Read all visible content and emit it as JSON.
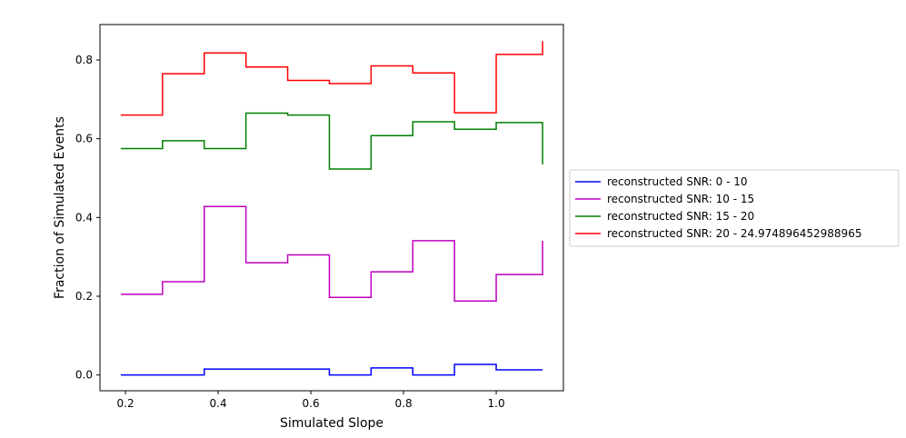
{
  "chart_data": {
    "type": "line",
    "step": true,
    "xlabel": "Simulated Slope",
    "ylabel": "Fraction of Simulated Events",
    "xlim": [
      0.145,
      1.145
    ],
    "ylim": [
      -0.04,
      0.89
    ],
    "xticks": [
      0.2,
      0.4,
      0.6,
      0.8,
      1.0
    ],
    "xtick_labels": [
      "0.2",
      "0.4",
      "0.6",
      "0.8",
      "1.0"
    ],
    "yticks": [
      0.0,
      0.2,
      0.4,
      0.6,
      0.8
    ],
    "ytick_labels": [
      "0.0",
      "0.2",
      "0.4",
      "0.6",
      "0.8"
    ],
    "grid": false,
    "legend_position": "outside right",
    "x": [
      0.19,
      0.28,
      0.37,
      0.46,
      0.55,
      0.64,
      0.73,
      0.82,
      0.91,
      1.0,
      1.1
    ],
    "series": [
      {
        "name": "reconstructed SNR: 0 - 10",
        "color": "#0000ff",
        "values": [
          0.0,
          0.0,
          0.015,
          0.015,
          0.015,
          0.0,
          0.018,
          0.0,
          0.027,
          0.013,
          0.013
        ]
      },
      {
        "name": "reconstructed SNR: 10 - 15",
        "color": "#bf00bf",
        "values": [
          0.205,
          0.237,
          0.428,
          0.285,
          0.305,
          0.197,
          0.262,
          0.341,
          0.188,
          0.255,
          0.341
        ]
      },
      {
        "name": "reconstructed SNR: 15 - 20",
        "color": "#008000",
        "values": [
          0.575,
          0.595,
          0.575,
          0.665,
          0.66,
          0.523,
          0.608,
          0.643,
          0.624,
          0.641,
          0.535
        ]
      },
      {
        "name": "reconstructed SNR: 20 - 24.974896452988965",
        "color": "#ff0000",
        "values": [
          0.66,
          0.765,
          0.818,
          0.782,
          0.748,
          0.74,
          0.785,
          0.767,
          0.666,
          0.814,
          0.848
        ]
      }
    ]
  }
}
